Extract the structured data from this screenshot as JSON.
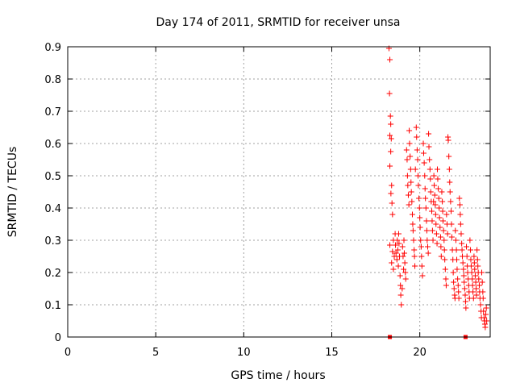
{
  "chart_data": {
    "type": "scatter",
    "title": "Day 174 of 2011, SRMTID for receiver unsa",
    "xlabel": "GPS time / hours",
    "ylabel": "SRMTID / TECUs",
    "xlim": [
      0,
      24
    ],
    "ylim": [
      0,
      0.9
    ],
    "xticks": [
      0,
      5,
      10,
      15,
      20
    ],
    "yticks": [
      0,
      0.1,
      0.2,
      0.3,
      0.4,
      0.5,
      0.6,
      0.7,
      0.8,
      0.9
    ],
    "grid": true,
    "marker": "+",
    "color": "#ff0000",
    "zero_markers": [
      18.3,
      22.6
    ],
    "series": [
      {
        "points": [
          [
            18.25,
            0.895
          ],
          [
            18.3,
            0.86
          ],
          [
            18.28,
            0.755
          ],
          [
            18.33,
            0.685
          ],
          [
            18.35,
            0.66
          ],
          [
            18.3,
            0.625
          ],
          [
            18.38,
            0.615
          ],
          [
            18.35,
            0.575
          ],
          [
            18.3,
            0.53
          ],
          [
            18.4,
            0.47
          ],
          [
            18.36,
            0.445
          ],
          [
            18.42,
            0.415
          ],
          [
            18.45,
            0.38
          ],
          [
            18.3,
            0.285
          ],
          [
            18.5,
            0.3
          ],
          [
            18.45,
            0.265
          ],
          [
            18.4,
            0.23
          ],
          [
            18.55,
            0.25
          ],
          [
            18.5,
            0.21
          ],
          [
            18.6,
            0.32
          ],
          [
            18.62,
            0.285
          ],
          [
            18.65,
            0.26
          ],
          [
            18.7,
            0.24
          ],
          [
            18.72,
            0.3
          ],
          [
            18.75,
            0.27
          ],
          [
            18.78,
            0.22
          ],
          [
            18.8,
            0.32
          ],
          [
            18.82,
            0.29
          ],
          [
            18.85,
            0.25
          ],
          [
            18.88,
            0.19
          ],
          [
            18.9,
            0.16
          ],
          [
            18.92,
            0.13
          ],
          [
            18.95,
            0.1
          ],
          [
            19.0,
            0.15
          ],
          [
            19.02,
            0.28
          ],
          [
            19.05,
            0.25
          ],
          [
            19.08,
            0.21
          ],
          [
            19.1,
            0.3
          ],
          [
            19.12,
            0.26
          ],
          [
            19.15,
            0.23
          ],
          [
            19.18,
            0.2
          ],
          [
            19.2,
            0.18
          ],
          [
            19.25,
            0.58
          ],
          [
            19.28,
            0.55
          ],
          [
            19.3,
            0.5
          ],
          [
            19.32,
            0.47
          ],
          [
            19.35,
            0.44
          ],
          [
            19.38,
            0.41
          ],
          [
            19.4,
            0.64
          ],
          [
            19.42,
            0.6
          ],
          [
            19.45,
            0.56
          ],
          [
            19.48,
            0.52
          ],
          [
            19.5,
            0.48
          ],
          [
            19.52,
            0.45
          ],
          [
            19.55,
            0.42
          ],
          [
            19.58,
            0.38
          ],
          [
            19.6,
            0.35
          ],
          [
            19.62,
            0.33
          ],
          [
            19.65,
            0.3
          ],
          [
            19.68,
            0.27
          ],
          [
            19.7,
            0.25
          ],
          [
            19.72,
            0.22
          ],
          [
            19.75,
            0.52
          ],
          [
            19.8,
            0.65
          ],
          [
            19.82,
            0.62
          ],
          [
            19.85,
            0.58
          ],
          [
            19.88,
            0.55
          ],
          [
            19.9,
            0.5
          ],
          [
            19.92,
            0.47
          ],
          [
            19.95,
            0.43
          ],
          [
            19.98,
            0.4
          ],
          [
            20.0,
            0.37
          ],
          [
            20.02,
            0.34
          ],
          [
            20.05,
            0.3
          ],
          [
            20.08,
            0.28
          ],
          [
            20.1,
            0.25
          ],
          [
            20.12,
            0.22
          ],
          [
            20.15,
            0.19
          ],
          [
            20.2,
            0.6
          ],
          [
            20.22,
            0.57
          ],
          [
            20.25,
            0.54
          ],
          [
            20.28,
            0.5
          ],
          [
            20.3,
            0.46
          ],
          [
            20.32,
            0.43
          ],
          [
            20.35,
            0.4
          ],
          [
            20.38,
            0.36
          ],
          [
            20.4,
            0.33
          ],
          [
            20.42,
            0.3
          ],
          [
            20.45,
            0.28
          ],
          [
            20.48,
            0.26
          ],
          [
            20.5,
            0.63
          ],
          [
            20.52,
            0.59
          ],
          [
            20.55,
            0.55
          ],
          [
            20.58,
            0.52
          ],
          [
            20.6,
            0.49
          ],
          [
            20.62,
            0.45
          ],
          [
            20.65,
            0.42
          ],
          [
            20.68,
            0.39
          ],
          [
            20.7,
            0.36
          ],
          [
            20.72,
            0.33
          ],
          [
            20.75,
            0.3
          ],
          [
            20.78,
            0.42
          ],
          [
            20.8,
            0.5
          ],
          [
            20.82,
            0.47
          ],
          [
            20.85,
            0.44
          ],
          [
            20.88,
            0.41
          ],
          [
            20.9,
            0.38
          ],
          [
            20.92,
            0.35
          ],
          [
            20.95,
            0.32
          ],
          [
            20.98,
            0.29
          ],
          [
            21.0,
            0.52
          ],
          [
            21.02,
            0.49
          ],
          [
            21.05,
            0.46
          ],
          [
            21.08,
            0.43
          ],
          [
            21.1,
            0.4
          ],
          [
            21.12,
            0.37
          ],
          [
            21.15,
            0.34
          ],
          [
            21.18,
            0.31
          ],
          [
            21.2,
            0.28
          ],
          [
            21.22,
            0.25
          ],
          [
            21.25,
            0.45
          ],
          [
            21.28,
            0.42
          ],
          [
            21.3,
            0.39
          ],
          [
            21.32,
            0.36
          ],
          [
            21.35,
            0.33
          ],
          [
            21.38,
            0.3
          ],
          [
            21.4,
            0.27
          ],
          [
            21.42,
            0.24
          ],
          [
            21.45,
            0.21
          ],
          [
            21.48,
            0.18
          ],
          [
            21.5,
            0.16
          ],
          [
            21.52,
            0.38
          ],
          [
            21.55,
            0.35
          ],
          [
            21.58,
            0.32
          ],
          [
            21.6,
            0.62
          ],
          [
            21.62,
            0.61
          ],
          [
            21.65,
            0.56
          ],
          [
            21.68,
            0.52
          ],
          [
            21.7,
            0.48
          ],
          [
            21.72,
            0.45
          ],
          [
            21.75,
            0.42
          ],
          [
            21.78,
            0.39
          ],
          [
            21.8,
            0.35
          ],
          [
            21.82,
            0.31
          ],
          [
            21.85,
            0.27
          ],
          [
            21.88,
            0.24
          ],
          [
            21.9,
            0.2
          ],
          [
            21.92,
            0.17
          ],
          [
            21.95,
            0.15
          ],
          [
            21.98,
            0.13
          ],
          [
            22.0,
            0.12
          ],
          [
            22.02,
            0.33
          ],
          [
            22.05,
            0.3
          ],
          [
            22.08,
            0.27
          ],
          [
            22.1,
            0.24
          ],
          [
            22.12,
            0.21
          ],
          [
            22.15,
            0.18
          ],
          [
            22.18,
            0.16
          ],
          [
            22.2,
            0.14
          ],
          [
            22.22,
            0.12
          ],
          [
            22.25,
            0.43
          ],
          [
            22.28,
            0.41
          ],
          [
            22.3,
            0.38
          ],
          [
            22.32,
            0.35
          ],
          [
            22.35,
            0.32
          ],
          [
            22.38,
            0.29
          ],
          [
            22.4,
            0.27
          ],
          [
            22.42,
            0.25
          ],
          [
            22.45,
            0.23
          ],
          [
            22.48,
            0.21
          ],
          [
            22.5,
            0.19
          ],
          [
            22.52,
            0.17
          ],
          [
            22.55,
            0.15
          ],
          [
            22.58,
            0.13
          ],
          [
            22.6,
            0.11
          ],
          [
            22.62,
            0.09
          ],
          [
            22.65,
            0.28
          ],
          [
            22.68,
            0.25
          ],
          [
            22.7,
            0.22
          ],
          [
            22.72,
            0.2
          ],
          [
            22.75,
            0.18
          ],
          [
            22.78,
            0.16
          ],
          [
            22.8,
            0.14
          ],
          [
            22.82,
            0.12
          ],
          [
            22.85,
            0.3
          ],
          [
            22.88,
            0.27
          ],
          [
            22.9,
            0.24
          ],
          [
            22.92,
            0.22
          ],
          [
            22.95,
            0.2
          ],
          [
            22.98,
            0.18
          ],
          [
            23.0,
            0.16
          ],
          [
            23.02,
            0.14
          ],
          [
            23.05,
            0.12
          ],
          [
            23.08,
            0.25
          ],
          [
            23.1,
            0.23
          ],
          [
            23.12,
            0.21
          ],
          [
            23.15,
            0.19
          ],
          [
            23.18,
            0.17
          ],
          [
            23.2,
            0.15
          ],
          [
            23.22,
            0.13
          ],
          [
            23.25,
            0.27
          ],
          [
            23.28,
            0.24
          ],
          [
            23.3,
            0.22
          ],
          [
            23.32,
            0.2
          ],
          [
            23.35,
            0.18
          ],
          [
            23.38,
            0.16
          ],
          [
            23.4,
            0.14
          ],
          [
            23.42,
            0.12
          ],
          [
            23.45,
            0.1
          ],
          [
            23.48,
            0.08
          ],
          [
            23.5,
            0.06
          ],
          [
            23.52,
            0.2
          ],
          [
            23.55,
            0.17
          ],
          [
            23.58,
            0.14
          ],
          [
            23.6,
            0.12
          ],
          [
            23.62,
            0.08
          ],
          [
            23.65,
            0.06
          ],
          [
            23.68,
            0.05
          ],
          [
            23.7,
            0.04
          ],
          [
            23.72,
            0.03
          ],
          [
            23.75,
            0.07
          ],
          [
            23.78,
            0.09
          ],
          [
            23.8,
            0.05
          ]
        ]
      }
    ]
  }
}
